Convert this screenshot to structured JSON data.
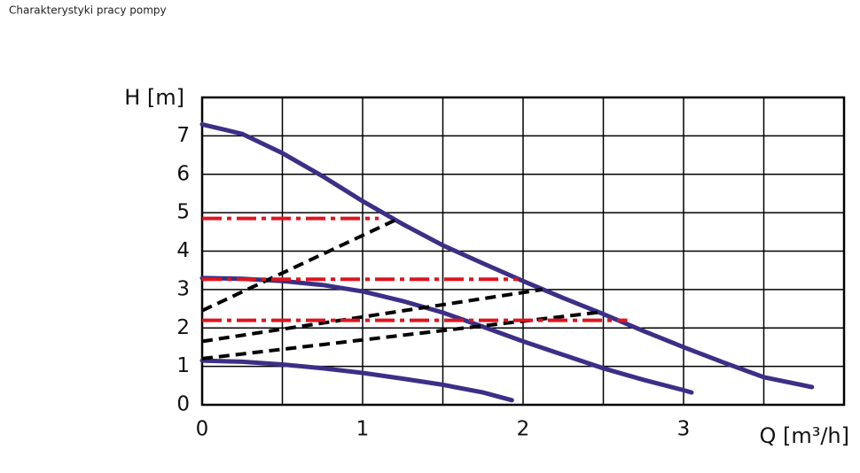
{
  "chart_data": {
    "type": "line",
    "title": "Charakterystyki pracy pompy",
    "y_label": "H [m]",
    "x_label": "Q [m³/h]",
    "xlim": [
      0,
      4
    ],
    "ylim": [
      0,
      8
    ],
    "xticks": [
      0,
      1,
      2,
      3
    ],
    "x_minor_grid": [
      0.5,
      1.5,
      2.5,
      3.5
    ],
    "yticks": [
      0,
      1,
      2,
      3,
      4,
      5,
      6,
      7
    ],
    "grid": true,
    "series": [
      {
        "color": "#3b2f86",
        "style": "solid",
        "x": [
          0,
          0.25,
          0.5,
          0.75,
          1,
          1.25,
          1.5,
          1.75,
          2,
          2.25,
          2.5,
          2.75,
          3,
          3.25,
          3.5,
          3.8
        ],
        "values": [
          7.3,
          7.05,
          6.55,
          5.95,
          5.3,
          4.7,
          4.15,
          3.68,
          3.22,
          2.78,
          2.36,
          1.92,
          1.5,
          1.1,
          0.72,
          0.46
        ]
      },
      {
        "color": "#3b2f86",
        "style": "solid",
        "x": [
          0,
          0.25,
          0.5,
          0.75,
          1,
          1.25,
          1.5,
          1.75,
          2,
          2.25,
          2.5,
          2.75,
          3,
          3.05
        ],
        "values": [
          3.3,
          3.28,
          3.22,
          3.12,
          2.95,
          2.7,
          2.4,
          2.03,
          1.65,
          1.3,
          0.95,
          0.65,
          0.38,
          0.32
        ]
      },
      {
        "color": "#3b2f86",
        "style": "solid",
        "x": [
          0,
          0.25,
          0.5,
          0.75,
          1,
          1.25,
          1.5,
          1.75,
          1.93
        ],
        "values": [
          1.15,
          1.12,
          1.05,
          0.95,
          0.83,
          0.68,
          0.52,
          0.32,
          0.12
        ]
      },
      {
        "color": "#000000",
        "style": "dashed",
        "x": [
          0,
          1.2
        ],
        "values": [
          2.45,
          4.8
        ]
      },
      {
        "color": "#000000",
        "style": "dashed",
        "x": [
          0,
          2.12
        ],
        "values": [
          1.65,
          3.0
        ]
      },
      {
        "color": "#000000",
        "style": "dashed",
        "x": [
          0,
          2.5
        ],
        "values": [
          1.2,
          2.42
        ]
      },
      {
        "color": "#e0141e",
        "style": "dashdot",
        "x": [
          0,
          1.1
        ],
        "values": [
          4.85,
          4.85
        ]
      },
      {
        "color": "#e0141e",
        "style": "dashdot",
        "x": [
          0,
          1.97
        ],
        "values": [
          3.27,
          3.27
        ]
      },
      {
        "color": "#e0141e",
        "style": "dashdot",
        "x": [
          0,
          2.65
        ],
        "values": [
          2.2,
          2.2
        ]
      }
    ]
  }
}
